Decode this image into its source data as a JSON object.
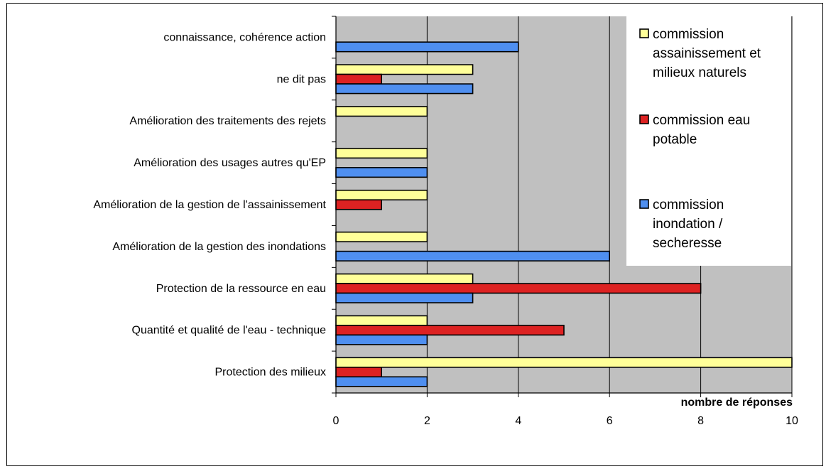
{
  "chart_data": {
    "type": "bar",
    "orientation": "horizontal",
    "categories": [
      "connaissance, cohérence action",
      "ne dit pas",
      "Amélioration des traitements des rejets",
      "Amélioration des usages autres qu'EP",
      "Amélioration de la gestion de l'assainissement",
      "Amélioration de la gestion des inondations",
      "Protection de la ressource en eau",
      "Quantité et qualité de l'eau - technique",
      "Protection des milieux"
    ],
    "series": [
      {
        "name": "commission assainissement et milieux naturels",
        "legend_lines": [
          "commission",
          "assainissement et",
          "milieux naturels"
        ],
        "color": "#ffff99",
        "values": [
          0,
          3,
          2,
          2,
          2,
          2,
          3,
          2,
          10
        ]
      },
      {
        "name": "commission eau potable",
        "legend_lines": [
          "commission eau",
          "potable"
        ],
        "color": "#dd2222",
        "values": [
          0,
          1,
          0,
          0,
          1,
          0,
          8,
          5,
          1
        ]
      },
      {
        "name": "commission inondation / secheresse",
        "legend_lines": [
          "commission",
          "inondation /",
          "secheresse"
        ],
        "color": "#4f8ff0",
        "values": [
          4,
          3,
          0,
          2,
          0,
          6,
          3,
          2,
          2
        ]
      }
    ],
    "xlabel": "nombre de réponses",
    "xticks": [
      "0",
      "2",
      "4",
      "6",
      "8",
      "10"
    ],
    "xlim": [
      0,
      10
    ],
    "grid": "vertical",
    "plot_background": "#c0c0c0",
    "legend_position": "top-right"
  }
}
